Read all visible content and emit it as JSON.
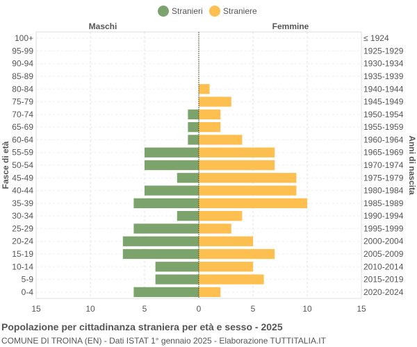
{
  "footer": {
    "title": "Popolazione per cittadinanza straniera per età e sesso - 2025",
    "subtitle": "COMUNE DI TROINA (EN) - Dati ISTAT 1° gennaio 2025 - Elaborazione TUTTITALIA.IT"
  },
  "chart_data": {
    "type": "bar",
    "orientation": "horizontal-pyramid",
    "left_header": "Maschi",
    "right_header": "Femmine",
    "ylabel_left": "Fasce di età",
    "ylabel_right": "Anni di nascita",
    "categories": [
      "100+",
      "95-99",
      "90-94",
      "85-89",
      "80-84",
      "75-79",
      "70-74",
      "65-69",
      "60-64",
      "55-59",
      "50-54",
      "45-49",
      "40-44",
      "35-39",
      "30-34",
      "25-29",
      "20-24",
      "15-19",
      "10-14",
      "5-9",
      "0-4"
    ],
    "birth_years": [
      "≤ 1924",
      "1925-1929",
      "1930-1934",
      "1935-1939",
      "1940-1944",
      "1945-1949",
      "1950-1954",
      "1955-1959",
      "1960-1964",
      "1965-1969",
      "1970-1974",
      "1975-1979",
      "1980-1984",
      "1985-1989",
      "1990-1994",
      "1995-1999",
      "2000-2004",
      "2005-2009",
      "2010-2014",
      "2015-2019",
      "2020-2024"
    ],
    "series": [
      {
        "name": "Stranieri",
        "color": "#7da36d",
        "side": "left",
        "values": [
          0,
          0,
          0,
          0,
          0,
          0,
          1,
          1,
          1,
          5,
          5,
          2,
          5,
          6,
          2,
          6,
          7,
          7,
          4,
          4,
          6
        ]
      },
      {
        "name": "Straniere",
        "color": "#fdbf4f",
        "side": "right",
        "values": [
          0,
          0,
          0,
          0,
          1,
          3,
          2,
          2,
          4,
          7,
          7,
          9,
          9,
          10,
          4,
          3,
          5,
          7,
          5,
          6,
          2
        ]
      }
    ],
    "xlim": [
      -15,
      15
    ],
    "x_ticks": [
      "15",
      "10",
      "5",
      "0",
      "5",
      "10",
      "15"
    ],
    "legend_position": "top-center",
    "grid": true
  }
}
